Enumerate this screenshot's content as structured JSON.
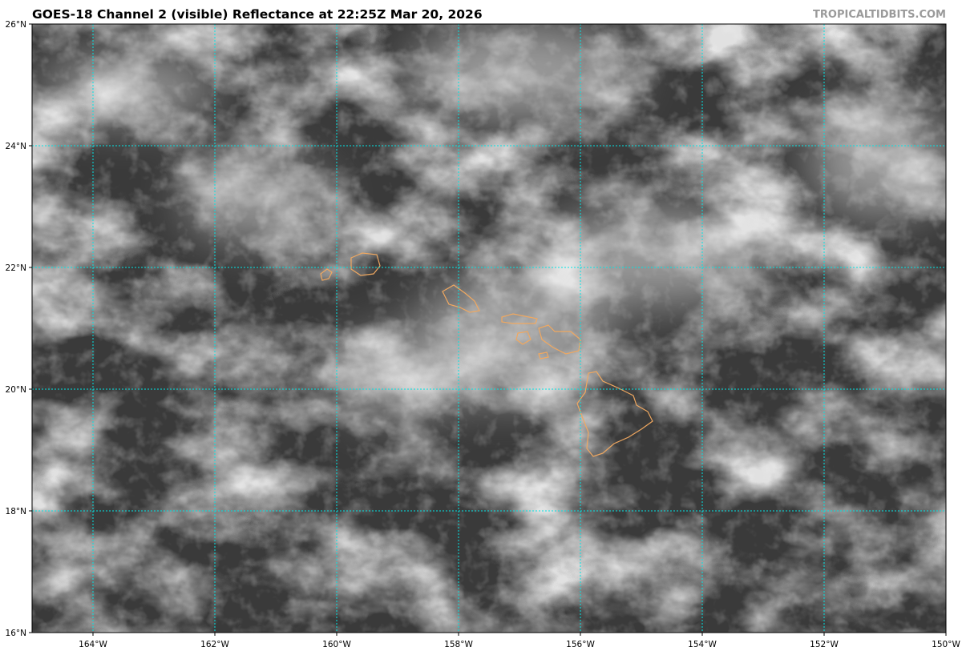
{
  "title": "GOES-18 Channel 2 (visible) Reflectance at 22:25Z Mar 20, 2026",
  "credit": "TROPICALTIDBITS.COM",
  "map": {
    "lon_range": [
      -165,
      -150
    ],
    "lat_range": [
      16,
      26
    ],
    "grid_color": "#00e5e5",
    "coastline_color": "#f0a860",
    "lon_ticks": [
      "164°W",
      "162°W",
      "160°W",
      "158°W",
      "156°W",
      "154°W",
      "152°W",
      "150°W"
    ],
    "lat_ticks": [
      "26°N",
      "24°N",
      "22°N",
      "20°N",
      "18°N",
      "16°N"
    ]
  }
}
